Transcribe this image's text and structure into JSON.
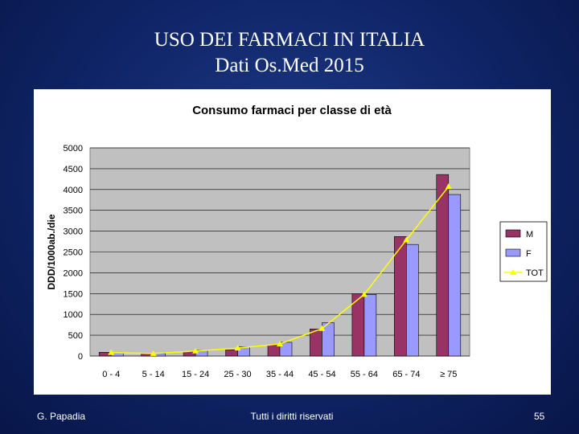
{
  "slide": {
    "title_line1": "USO DEI FARMACI IN ITALIA",
    "title_line2": "Dati Os.Med 2015"
  },
  "footer": {
    "author": "G. Papadia",
    "rights": "Tutti i diritti riservati",
    "page_number": "55"
  },
  "chart_data": {
    "type": "bar",
    "title": "Consumo farmaci per classe di età",
    "ylabel": "DDD/1000ab./die",
    "xlabel": "",
    "ylim": [
      0,
      5000
    ],
    "yticks": [
      0,
      500,
      1000,
      1500,
      2000,
      2500,
      3000,
      3500,
      4000,
      4500,
      5000
    ],
    "grid": true,
    "legend_position": "right",
    "categories": [
      "0 - 4",
      "5 - 14",
      "15 - 24",
      "25 - 30",
      "35 - 44",
      "45 - 54",
      "55 - 64",
      "65 - 74",
      "≥ 75"
    ],
    "series": [
      {
        "name": "M",
        "kind": "bar",
        "color": "#993366",
        "values": [
          90,
          60,
          100,
          150,
          260,
          650,
          1500,
          2870,
          4360
        ]
      },
      {
        "name": "F",
        "kind": "bar",
        "color": "#9999ff",
        "values": [
          80,
          60,
          140,
          220,
          330,
          800,
          1480,
          2680,
          3880
        ]
      },
      {
        "name": "TOT",
        "kind": "line",
        "color": "#ffff00",
        "values": [
          85,
          60,
          120,
          190,
          290,
          660,
          1480,
          2790,
          4070
        ]
      }
    ],
    "plot_background": "#c0c0c0"
  }
}
